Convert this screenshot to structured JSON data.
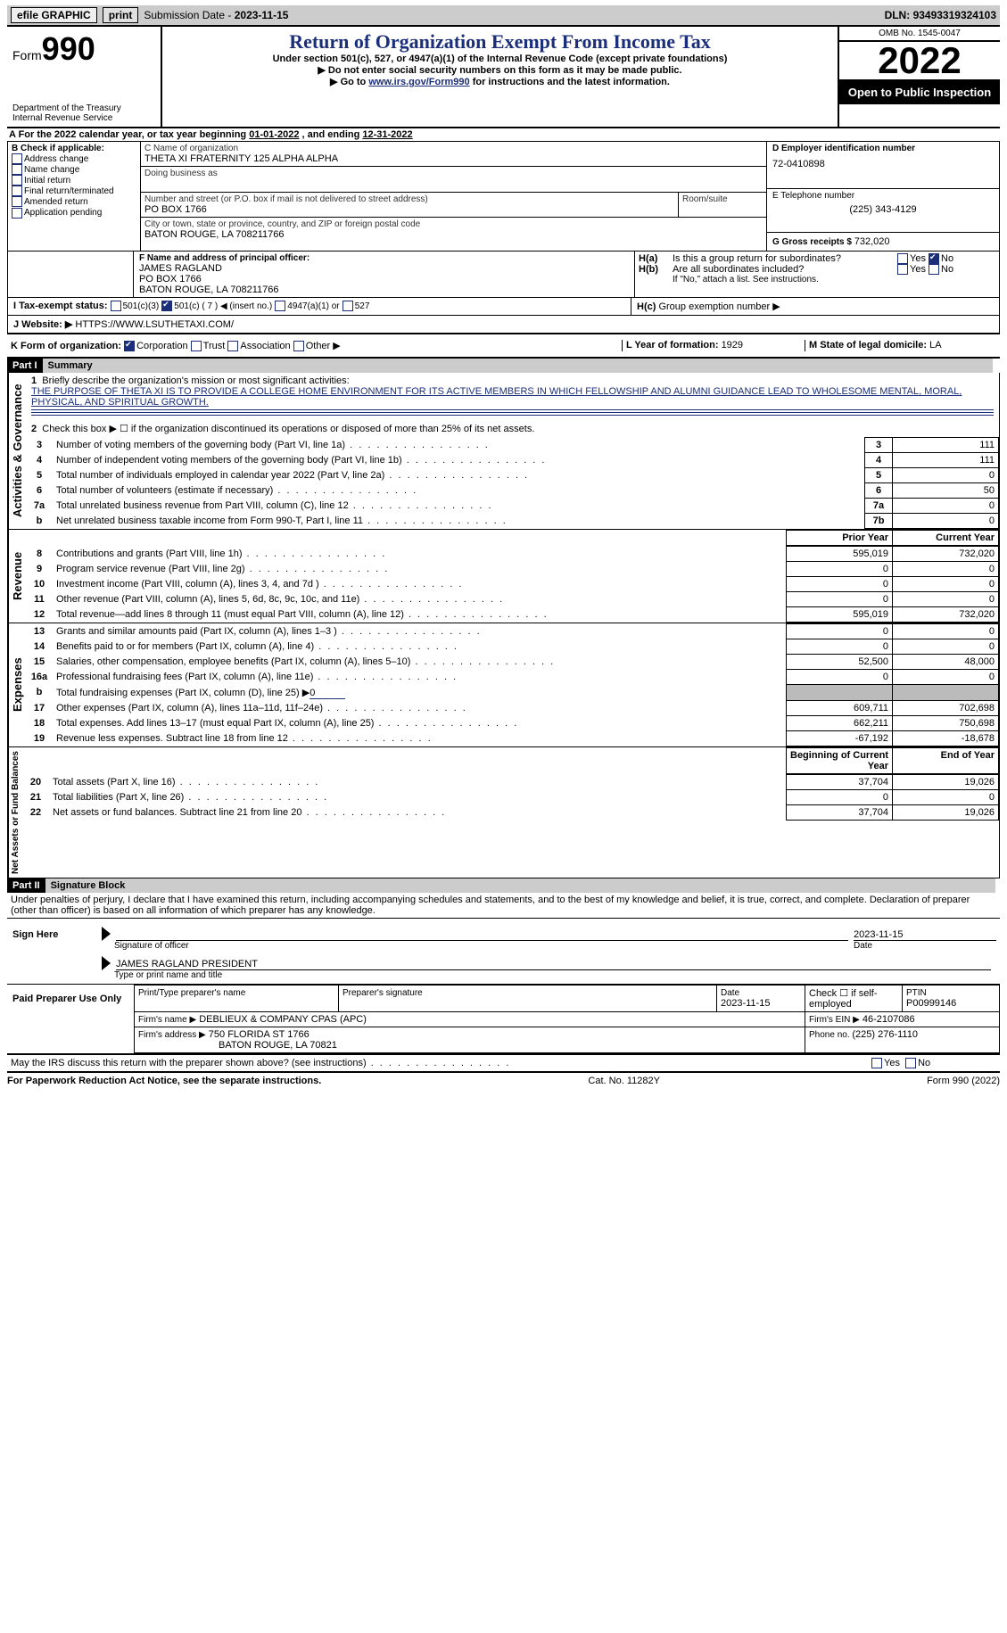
{
  "topbar": {
    "efile": "efile GRAPHIC",
    "print": "print",
    "subdate_label": "Submission Date - ",
    "subdate": "2023-11-15",
    "dln_label": "DLN: ",
    "dln": "93493319324103"
  },
  "header": {
    "form_word": "Form",
    "form_num": "990",
    "title": "Return of Organization Exempt From Income Tax",
    "sub1": "Under section 501(c), 527, or 4947(a)(1) of the Internal Revenue Code (except private foundations)",
    "sub2": "▶ Do not enter social security numbers on this form as it may be made public.",
    "sub3_pre": "▶ Go to ",
    "sub3_link": "www.irs.gov/Form990",
    "sub3_post": " for instructions and the latest information.",
    "dept": "Department of the Treasury",
    "irs": "Internal Revenue Service",
    "omb": "OMB No. 1545-0047",
    "year": "2022",
    "open": "Open to Public Inspection"
  },
  "lineA": {
    "pre": "A For the 2022 calendar year, or tax year beginning ",
    "begin": "01-01-2022",
    "mid": "   , and ending ",
    "end": "12-31-2022"
  },
  "boxB": {
    "title": "B Check if applicable:",
    "items": [
      "Address change",
      "Name change",
      "Initial return",
      "Final return/terminated",
      "Amended return",
      "Application pending"
    ]
  },
  "boxC": {
    "label": "C Name of organization",
    "name": "THETA XI FRATERNITY 125 ALPHA ALPHA",
    "dba_label": "Doing business as",
    "street_label": "Number and street (or P.O. box if mail is not delivered to street address)",
    "room_label": "Room/suite",
    "street": "PO BOX 1766",
    "city_label": "City or town, state or province, country, and ZIP or foreign postal code",
    "city": "BATON ROUGE, LA  708211766"
  },
  "boxD": {
    "label": "D Employer identification number",
    "value": "72-0410898"
  },
  "boxE": {
    "label": "E Telephone number",
    "value": "(225) 343-4129"
  },
  "boxG": {
    "label": "G Gross receipts $ ",
    "value": "732,020"
  },
  "boxF": {
    "label": "F  Name and address of principal officer:",
    "name": "JAMES RAGLAND",
    "line2": "PO BOX 1766",
    "line3": "BATON ROUGE, LA  708211766"
  },
  "boxH": {
    "ha": "Is this a group return for subordinates?",
    "hb": "Are all subordinates included?",
    "hb_note": "If \"No,\" attach a list. See instructions.",
    "hc": "Group exemption number ▶",
    "yes": "Yes",
    "no": "No"
  },
  "lineI": {
    "label": "I    Tax-exempt status:",
    "opts": [
      "501(c)(3)",
      "501(c) ( 7 ) ◀ (insert no.)",
      "4947(a)(1) or",
      "527"
    ]
  },
  "lineJ": {
    "label": "J    Website: ▶",
    "value": "HTTPS://WWW.LSUTHETAXI.COM/"
  },
  "lineK": {
    "label": "K Form of organization:",
    "opts": [
      "Corporation",
      "Trust",
      "Association",
      "Other ▶"
    ]
  },
  "lineL": {
    "label": "L Year of formation: ",
    "value": "1929"
  },
  "lineM": {
    "label": "M State of legal domicile: ",
    "value": "LA"
  },
  "part1": {
    "bar": "Part I",
    "title": "Summary"
  },
  "summary": {
    "side_ag": "Activities & Governance",
    "side_rev": "Revenue",
    "side_exp": "Expenses",
    "side_net": "Net Assets or Fund Balances",
    "l1_label": "Briefly describe the organization's mission or most significant activities:",
    "l1_text": "THE PURPOSE OF THETA XI IS TO PROVIDE A COLLEGE HOME ENVIRONMENT FOR ITS ACTIVE MEMBERS IN WHICH FELLOWSHIP AND ALUMNI GUIDANCE LEAD TO WHOLESOME MENTAL, MORAL, PHYSICAL, AND SPIRITUAL GROWTH.",
    "l2": "Check this box ▶ ☐ if the organization discontinued its operations or disposed of more than 25% of its net assets.",
    "rows_ag": [
      {
        "n": "3",
        "t": "Number of voting members of the governing body (Part VI, line 1a)",
        "box": "3",
        "v": "111"
      },
      {
        "n": "4",
        "t": "Number of independent voting members of the governing body (Part VI, line 1b)",
        "box": "4",
        "v": "111"
      },
      {
        "n": "5",
        "t": "Total number of individuals employed in calendar year 2022 (Part V, line 2a)",
        "box": "5",
        "v": "0"
      },
      {
        "n": "6",
        "t": "Total number of volunteers (estimate if necessary)",
        "box": "6",
        "v": "50"
      },
      {
        "n": "7a",
        "t": "Total unrelated business revenue from Part VIII, column (C), line 12",
        "box": "7a",
        "v": "0"
      },
      {
        "n": "b",
        "t": "Net unrelated business taxable income from Form 990-T, Part I, line 11",
        "box": "7b",
        "v": "0"
      }
    ],
    "hdr_prior": "Prior Year",
    "hdr_curr": "Current Year",
    "rows_rev": [
      {
        "n": "8",
        "t": "Contributions and grants (Part VIII, line 1h)",
        "p": "595,019",
        "c": "732,020"
      },
      {
        "n": "9",
        "t": "Program service revenue (Part VIII, line 2g)",
        "p": "0",
        "c": "0"
      },
      {
        "n": "10",
        "t": "Investment income (Part VIII, column (A), lines 3, 4, and 7d )",
        "p": "0",
        "c": "0"
      },
      {
        "n": "11",
        "t": "Other revenue (Part VIII, column (A), lines 5, 6d, 8c, 9c, 10c, and 11e)",
        "p": "0",
        "c": "0"
      },
      {
        "n": "12",
        "t": "Total revenue—add lines 8 through 11 (must equal Part VIII, column (A), line 12)",
        "p": "595,019",
        "c": "732,020"
      }
    ],
    "rows_exp": [
      {
        "n": "13",
        "t": "Grants and similar amounts paid (Part IX, column (A), lines 1–3 )",
        "p": "0",
        "c": "0"
      },
      {
        "n": "14",
        "t": "Benefits paid to or for members (Part IX, column (A), line 4)",
        "p": "0",
        "c": "0"
      },
      {
        "n": "15",
        "t": "Salaries, other compensation, employee benefits (Part IX, column (A), lines 5–10)",
        "p": "52,500",
        "c": "48,000"
      },
      {
        "n": "16a",
        "t": "Professional fundraising fees (Part IX, column (A), line 11e)",
        "p": "0",
        "c": "0"
      },
      {
        "n": "b",
        "t": "Total fundraising expenses (Part IX, column (D), line 25) ▶",
        "p": "shade",
        "c": "shade",
        "extra": "0"
      },
      {
        "n": "17",
        "t": "Other expenses (Part IX, column (A), lines 11a–11d, 11f–24e)",
        "p": "609,711",
        "c": "702,698"
      },
      {
        "n": "18",
        "t": "Total expenses. Add lines 13–17 (must equal Part IX, column (A), line 25)",
        "p": "662,211",
        "c": "750,698"
      },
      {
        "n": "19",
        "t": "Revenue less expenses. Subtract line 18 from line 12",
        "p": "-67,192",
        "c": "-18,678"
      }
    ],
    "hdr_boy": "Beginning of Current Year",
    "hdr_eoy": "End of Year",
    "rows_net": [
      {
        "n": "20",
        "t": "Total assets (Part X, line 16)",
        "p": "37,704",
        "c": "19,026"
      },
      {
        "n": "21",
        "t": "Total liabilities (Part X, line 26)",
        "p": "0",
        "c": "0"
      },
      {
        "n": "22",
        "t": "Net assets or fund balances. Subtract line 21 from line 20",
        "p": "37,704",
        "c": "19,026"
      }
    ]
  },
  "part2": {
    "bar": "Part II",
    "title": "Signature Block"
  },
  "penalties": "Under penalties of perjury, I declare that I have examined this return, including accompanying schedules and statements, and to the best of my knowledge and belief, it is true, correct, and complete. Declaration of preparer (other than officer) is based on all information of which preparer has any knowledge.",
  "sign": {
    "here": "Sign Here",
    "sig_label": "Signature of officer",
    "date_label": "Date",
    "date": "2023-11-15",
    "name": "JAMES RAGLAND  PRESIDENT",
    "name_label": "Type or print name and title"
  },
  "preparer": {
    "side": "Paid Preparer Use Only",
    "h1": "Print/Type preparer's name",
    "h2": "Preparer's signature",
    "h3": "Date",
    "h3v": "2023-11-15",
    "h4": "Check ☐ if self-employed",
    "h5": "PTIN",
    "h5v": "P00999146",
    "firm_label": "Firm's name    ▶",
    "firm": "DEBLIEUX & COMPANY CPAS (APC)",
    "ein_label": "Firm's EIN ▶",
    "ein": "46-2107086",
    "addr_label": "Firm's address ▶",
    "addr1": "750 FLORIDA ST 1766",
    "addr2": "BATON ROUGE, LA  70821",
    "phone_label": "Phone no. ",
    "phone": "(225) 276-1110"
  },
  "discuss": "May the IRS discuss this return with the preparer shown above? (see instructions)",
  "footer": {
    "left": "For Paperwork Reduction Act Notice, see the separate instructions.",
    "mid": "Cat. No. 11282Y",
    "right": "Form 990 (2022)"
  }
}
